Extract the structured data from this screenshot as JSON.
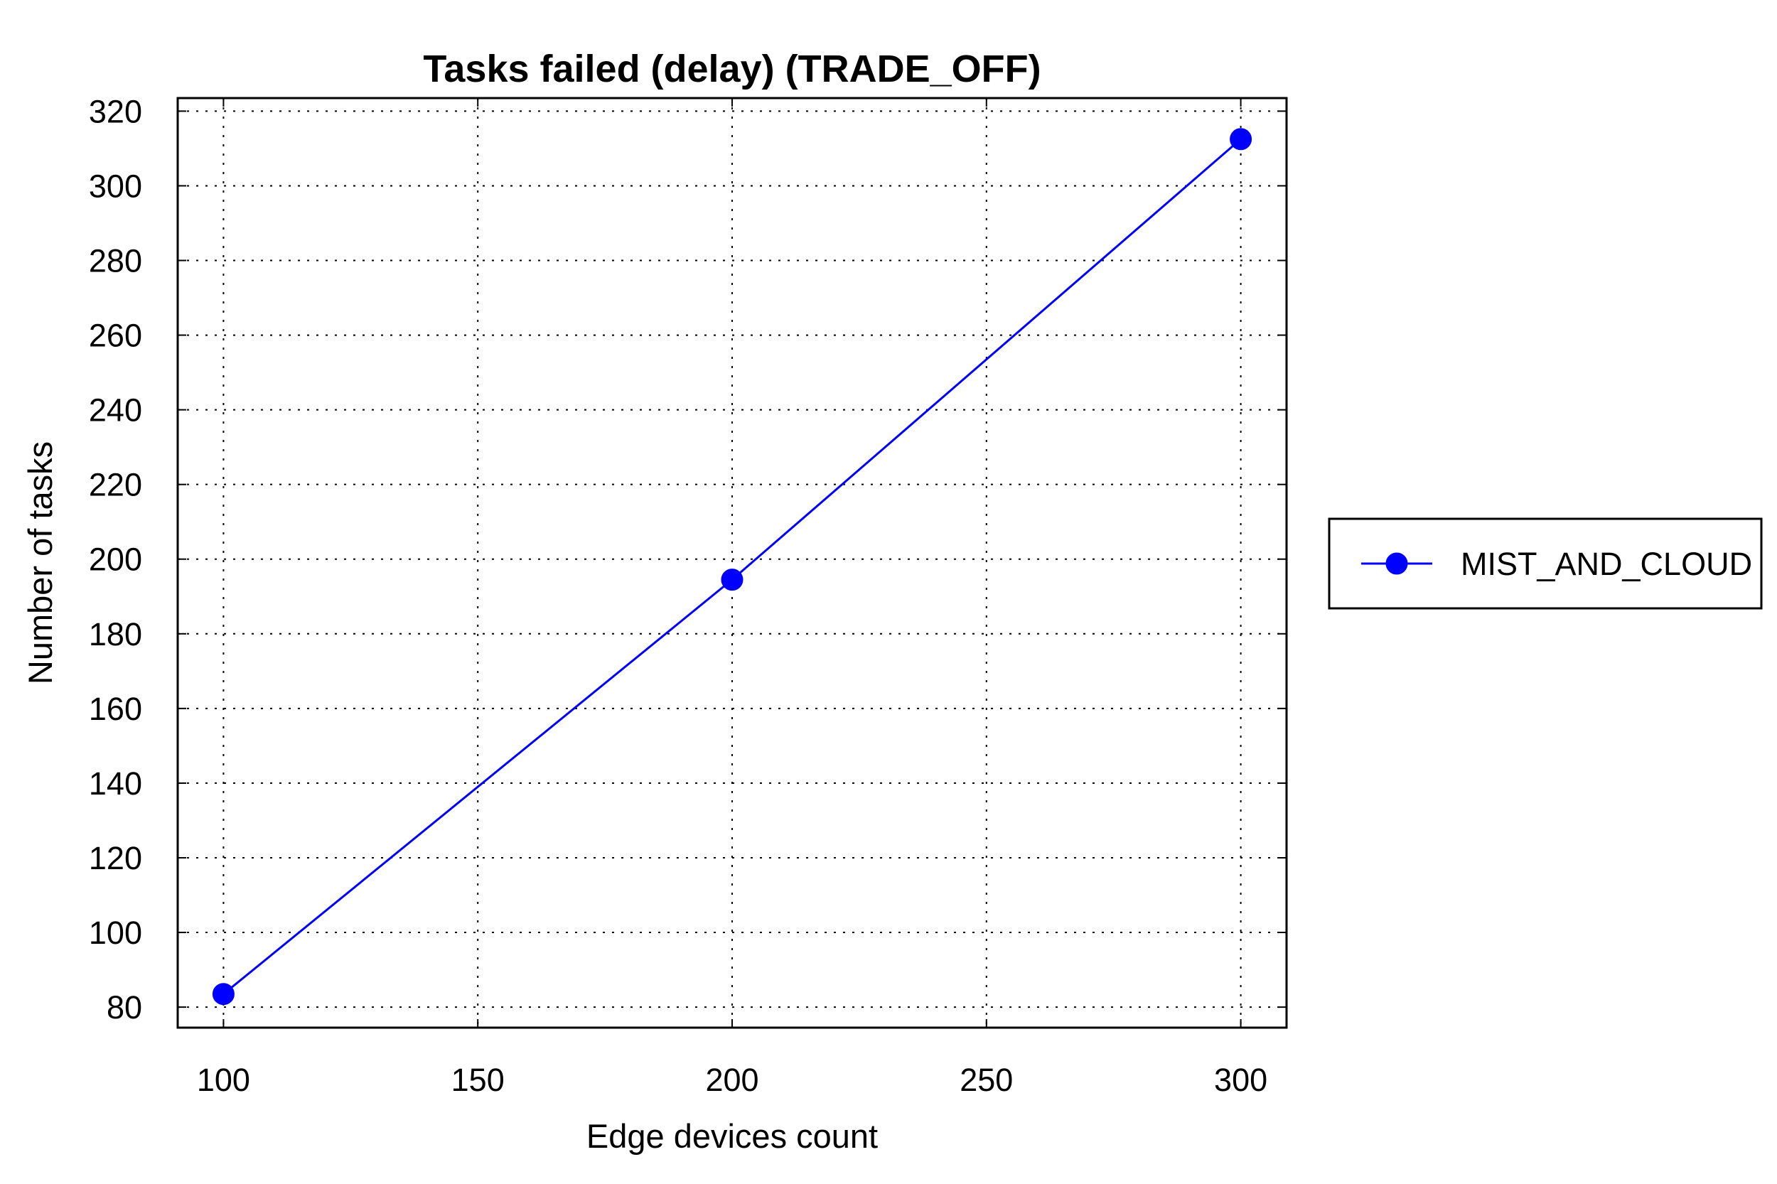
{
  "chart_data": {
    "type": "line",
    "title": "Tasks failed (delay) (TRADE_OFF)",
    "xlabel": "Edge devices count",
    "ylabel": "Number of tasks",
    "xlim": [
      91,
      309
    ],
    "ylim": [
      74.5,
      323.5
    ],
    "xticks": [
      100,
      150,
      200,
      250,
      300
    ],
    "yticks": [
      80,
      100,
      120,
      140,
      160,
      180,
      200,
      220,
      240,
      260,
      280,
      300,
      320
    ],
    "grid": true,
    "legend": "right",
    "series": [
      {
        "name": "MIST_AND_CLOUD",
        "color": "#0000ff",
        "marker": "circle",
        "x": [
          100,
          200,
          300
        ],
        "y": [
          83.5,
          194.5,
          312.5
        ]
      }
    ]
  }
}
